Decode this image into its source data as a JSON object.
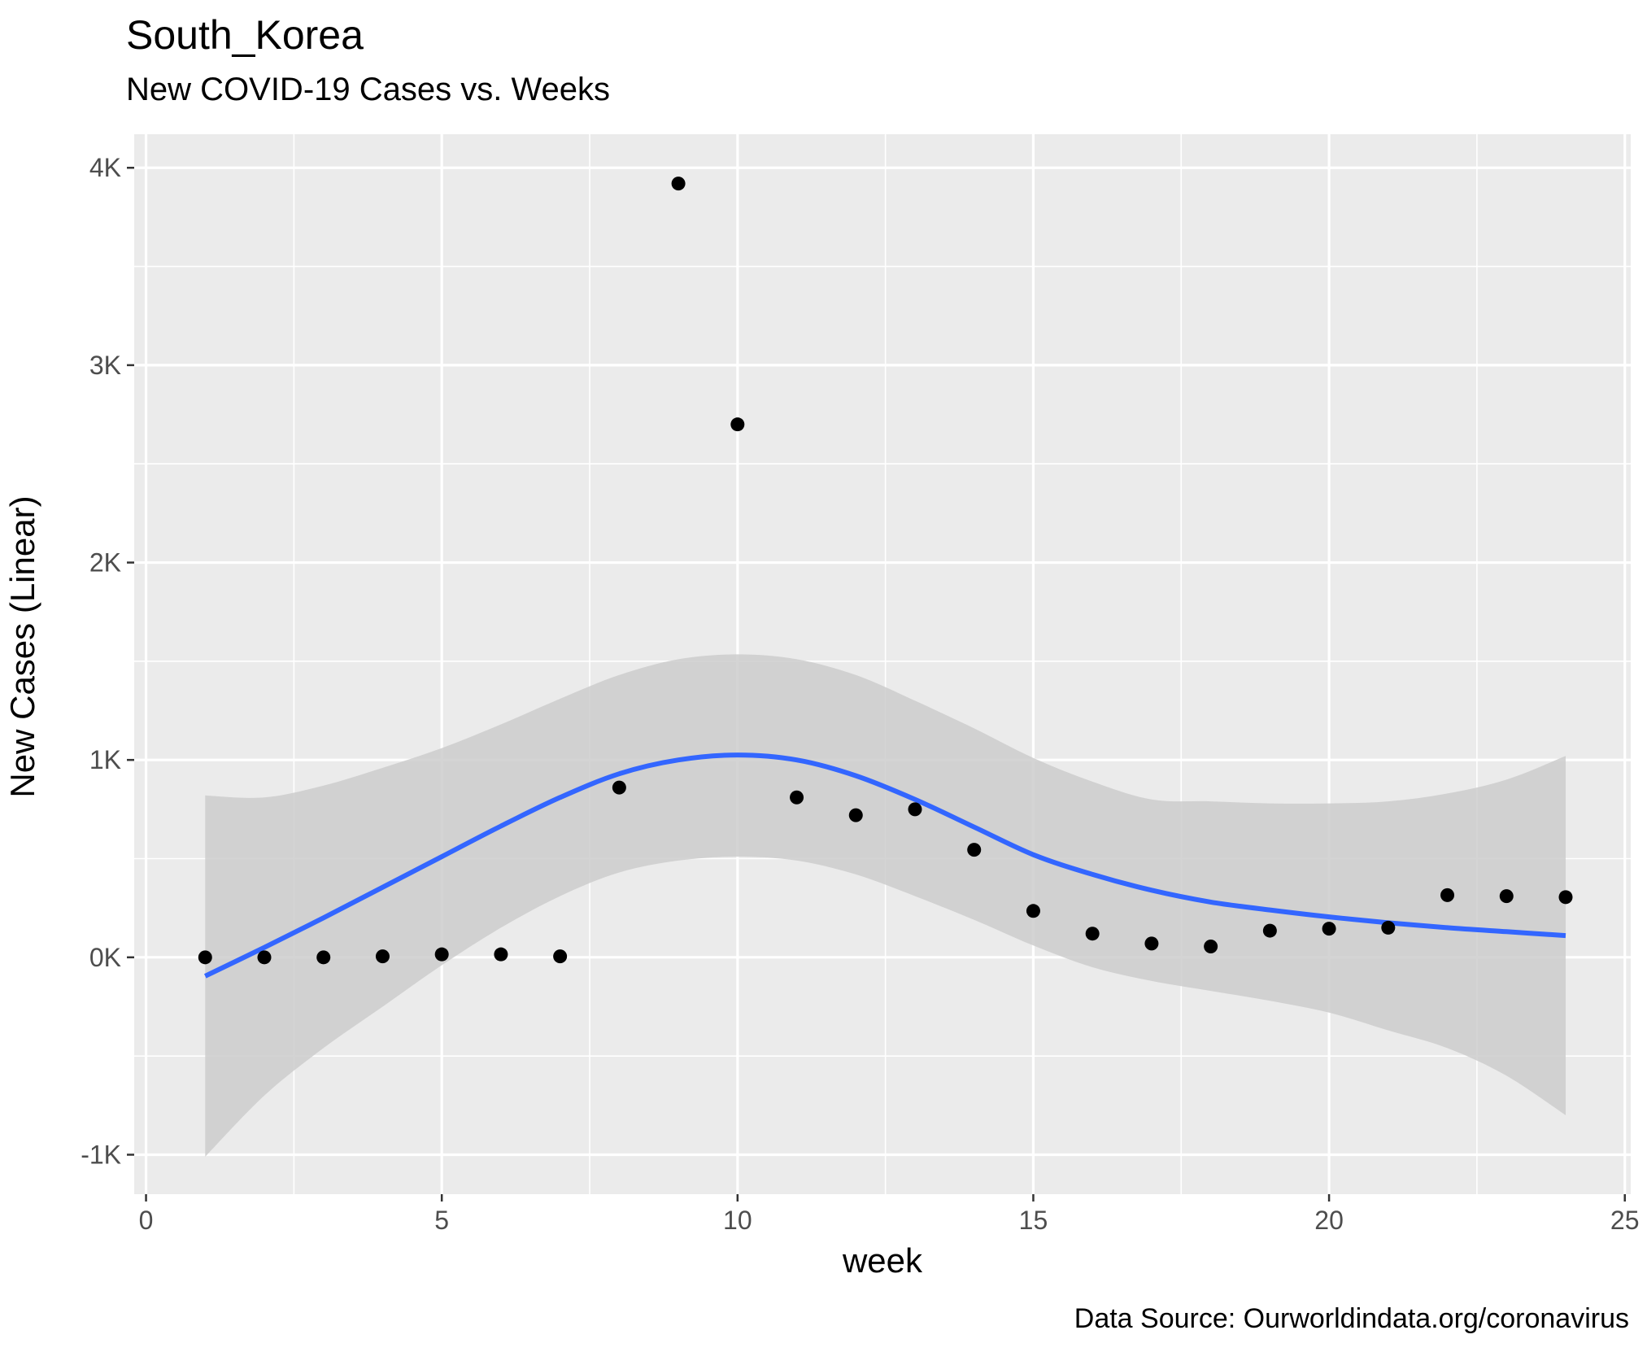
{
  "chart_data": {
    "type": "scatter",
    "title": "South_Korea",
    "subtitle": "New COVID-19 Cases vs. Weeks",
    "xlabel": "week",
    "ylabel": "New Cases (Linear)",
    "caption": "Data Source: Ourworldindata.org/coronavirus",
    "xlim": [
      -0.2,
      25.1
    ],
    "ylim": [
      -1200,
      4170
    ],
    "x_ticks": [
      0,
      5,
      10,
      15,
      20,
      25
    ],
    "x_tick_labels": [
      "0",
      "5",
      "10",
      "15",
      "20",
      "25"
    ],
    "y_ticks": [
      -1000,
      0,
      1000,
      2000,
      3000,
      4000
    ],
    "y_tick_labels": [
      "-1K",
      "0K",
      "1K",
      "2K",
      "3K",
      "4K"
    ],
    "grid": true,
    "background": "#ebebeb",
    "points": [
      {
        "x": 1,
        "y": 0
      },
      {
        "x": 2,
        "y": 0
      },
      {
        "x": 3,
        "y": 0
      },
      {
        "x": 4,
        "y": 5
      },
      {
        "x": 5,
        "y": 15
      },
      {
        "x": 6,
        "y": 15
      },
      {
        "x": 7,
        "y": 5
      },
      {
        "x": 8,
        "y": 860
      },
      {
        "x": 9,
        "y": 3920
      },
      {
        "x": 10,
        "y": 2700
      },
      {
        "x": 11,
        "y": 810
      },
      {
        "x": 12,
        "y": 720
      },
      {
        "x": 13,
        "y": 750
      },
      {
        "x": 14,
        "y": 545
      },
      {
        "x": 15,
        "y": 235
      },
      {
        "x": 16,
        "y": 120
      },
      {
        "x": 17,
        "y": 70
      },
      {
        "x": 18,
        "y": 55
      },
      {
        "x": 19,
        "y": 135
      },
      {
        "x": 20,
        "y": 145
      },
      {
        "x": 21,
        "y": 150
      },
      {
        "x": 22,
        "y": 315
      },
      {
        "x": 23,
        "y": 310
      },
      {
        "x": 24,
        "y": 305
      }
    ],
    "smooth_fit": {
      "color": "#3366ff",
      "x": [
        1,
        2,
        3,
        4,
        5,
        6,
        7,
        8,
        9,
        10,
        11,
        12,
        13,
        14,
        15,
        16,
        17,
        18,
        19,
        20,
        21,
        22,
        23,
        24
      ],
      "y": [
        -95,
        50,
        200,
        355,
        510,
        665,
        810,
        930,
        1000,
        1025,
        1000,
        920,
        800,
        660,
        520,
        420,
        340,
        280,
        240,
        205,
        175,
        150,
        130,
        110
      ],
      "ci_upper": [
        820,
        810,
        870,
        960,
        1060,
        1180,
        1310,
        1430,
        1510,
        1535,
        1510,
        1430,
        1300,
        1160,
        1010,
        890,
        800,
        790,
        780,
        780,
        790,
        830,
        900,
        1020
      ],
      "ci_lower": [
        -1010,
        -700,
        -460,
        -250,
        -40,
        150,
        310,
        430,
        490,
        510,
        490,
        420,
        310,
        190,
        60,
        -50,
        -120,
        -170,
        -220,
        -280,
        -370,
        -460,
        -600,
        -800
      ],
      "ci_fill": "#cccccc"
    }
  }
}
